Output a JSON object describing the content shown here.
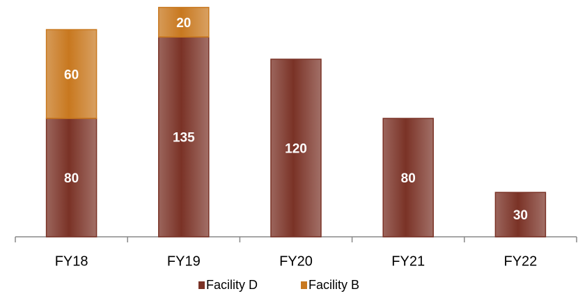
{
  "chart_data": {
    "type": "bar",
    "stacked": true,
    "categories": [
      "FY18",
      "FY19",
      "FY20",
      "FY21",
      "FY22"
    ],
    "series": [
      {
        "name": "Facility D",
        "color": "#7a3226",
        "values": [
          80,
          135,
          120,
          80,
          30
        ]
      },
      {
        "name": "Facility B",
        "color": "#c8781f",
        "values": [
          60,
          20,
          null,
          null,
          null
        ]
      }
    ],
    "legend": "bottom"
  }
}
